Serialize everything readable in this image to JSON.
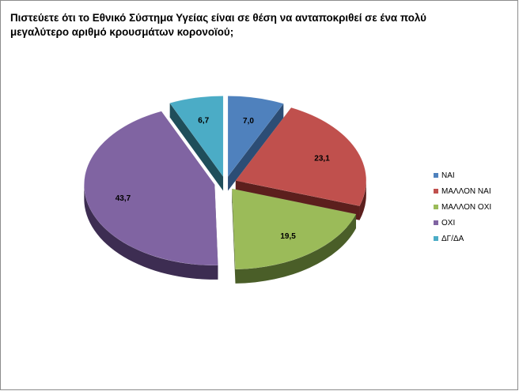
{
  "chart_data": {
    "type": "pie",
    "title_lines": [
      "Πιστεύετε ότι το Εθνικό Σύστημα Υγείας είναι σε θέση να ανταποκριθεί σε ένα πολύ",
      "μεγαλύτερο αριθμό κρουσμάτων κορονοϊού;"
    ],
    "slices": [
      {
        "label": "ΝΑΙ",
        "value": 7.0,
        "value_label": "7,0",
        "color": "#4f81bd",
        "side": "#2c4d75"
      },
      {
        "label": "ΜΑΛΛΟΝ ΝΑΙ",
        "value": 23.1,
        "value_label": "23,1",
        "color": "#c0504d",
        "side": "#5c1f1d"
      },
      {
        "label": "ΜΑΛΛΟΝ ΟΧΙ",
        "value": 19.5,
        "value_label": "19,5",
        "color": "#9bbb59",
        "side": "#4a5e28"
      },
      {
        "label": "ΟΧΙ",
        "value": 43.7,
        "value_label": "43,7",
        "color": "#8064a2",
        "side": "#3d2d52"
      },
      {
        "label": "ΔΓ/ΔΑ",
        "value": 6.7,
        "value_label": "6,7",
        "color": "#4bacc6",
        "side": "#1f4e5a"
      }
    ],
    "legend_position": "right"
  }
}
